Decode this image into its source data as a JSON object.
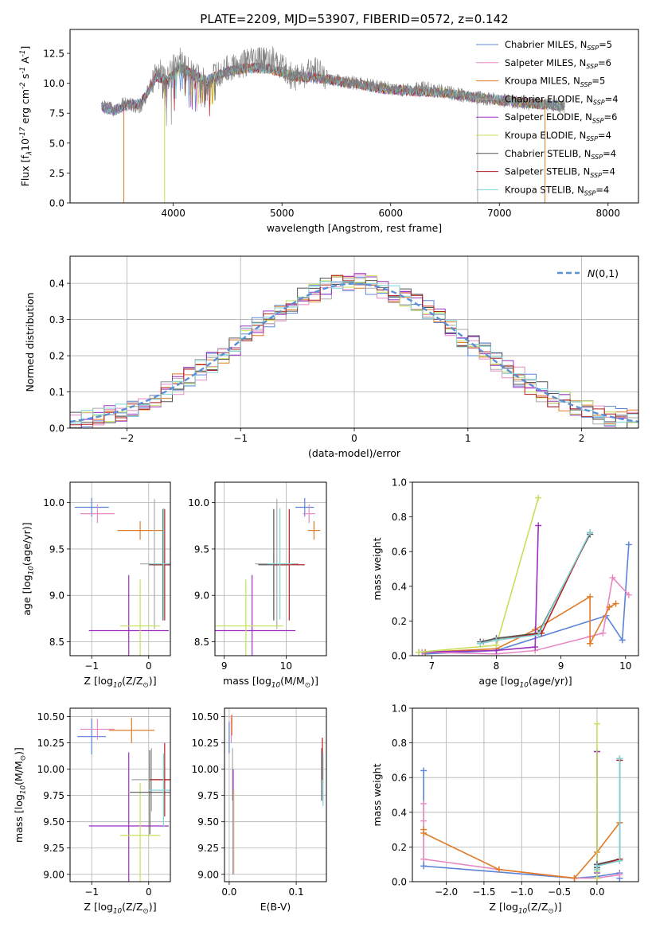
{
  "figure_title": "PLATE=2209, MJD=53907, FIBERID=0572, z=0.142",
  "models": [
    {
      "label": "Chabrier MILES, N$_{SSP}$=5",
      "color": "#5b83d8",
      "base": "Chabrier MILES, N",
      "sub": "SSP",
      "tail": "=5"
    },
    {
      "label": "Salpeter MILES, N$_{SSP}$=6",
      "color": "#e78ac3",
      "base": "Salpeter MILES, N",
      "sub": "SSP",
      "tail": "=6"
    },
    {
      "label": "Kroupa MILES, N$_{SSP}$=5",
      "color": "#e07b27",
      "base": "Kroupa MILES, N",
      "sub": "SSP",
      "tail": "=5"
    },
    {
      "label": "Chabrier ELODIE, N$_{SSP}$=4",
      "color": "#aaaaaa",
      "base": "Chabrier ELODIE, N",
      "sub": "SSP",
      "tail": "=4"
    },
    {
      "label": "Salpeter ELODIE, N$_{SSP}$=6",
      "color": "#9b30c0",
      "base": "Salpeter ELODIE, N",
      "sub": "SSP",
      "tail": "=6"
    },
    {
      "label": "Kroupa ELODIE, N$_{SSP}$=4",
      "color": "#c6e05a",
      "base": "Kroupa ELODIE, N",
      "sub": "SSP",
      "tail": "=4"
    },
    {
      "label": "Chabrier STELIB, N$_{SSP}$=4",
      "color": "#555555",
      "base": "Chabrier STELIB, N",
      "sub": "SSP",
      "tail": "=4"
    },
    {
      "label": "Salpeter STELIB, N$_{SSP}$=4",
      "color": "#b22222",
      "base": "Salpeter STELIB, N",
      "sub": "SSP",
      "tail": "=4"
    },
    {
      "label": "Kroupa STELIB, N$_{SSP}$=4",
      "color": "#7fd4d8",
      "base": "Kroupa STELIB, N",
      "sub": "SSP",
      "tail": "=4"
    }
  ],
  "chart_data": [
    {
      "id": "spectrum",
      "type": "line",
      "xlabel": "wavelength [Angstrom, rest frame]",
      "ylabel": "Flux [f$_\\lambda$10$^{-17}$ erg cm$^{-2}$ s$^{-1}$ A$^{-1}$]",
      "xlim": [
        3050,
        8280
      ],
      "ylim": [
        0,
        14.5
      ],
      "xticks": [
        4000,
        5000,
        6000,
        7000,
        8000
      ],
      "yticks": [
        0.0,
        2.5,
        5.0,
        7.5,
        10.0,
        12.5
      ],
      "series": [
        {
          "name": "data",
          "x": [
            3340,
            3450,
            3550,
            3700,
            3850,
            3950,
            4050,
            4150,
            4300,
            4500,
            4700,
            4900,
            5100,
            5300,
            5500,
            5700,
            5900,
            6100,
            6300,
            6500,
            6700,
            6900,
            7100,
            7300,
            7500,
            7600
          ],
          "y": [
            8.1,
            7.8,
            8.3,
            8.0,
            11.0,
            10.5,
            12.0,
            11.0,
            10.0,
            11.2,
            11.8,
            12.0,
            10.5,
            11.0,
            10.2,
            10.0,
            9.7,
            9.4,
            9.6,
            9.3,
            8.9,
            8.7,
            8.5,
            8.3,
            8.2,
            8.1
          ]
        },
        {
          "name": "model",
          "x": [
            3340,
            3450,
            3550,
            3700,
            3850,
            3950,
            4050,
            4150,
            4300,
            4500,
            4700,
            4900,
            5100,
            5300,
            5500,
            5700,
            5900,
            6100,
            6300,
            6500,
            6700,
            6900,
            7100,
            7300,
            7500,
            7600
          ],
          "y": [
            8.0,
            7.7,
            8.1,
            8.3,
            10.6,
            10.2,
            11.4,
            10.9,
            10.2,
            11.0,
            11.3,
            11.2,
            10.6,
            10.5,
            10.2,
            9.9,
            9.6,
            9.4,
            9.3,
            9.2,
            8.9,
            8.7,
            8.5,
            8.3,
            8.2,
            8.1
          ]
        }
      ]
    },
    {
      "id": "residuals",
      "type": "line",
      "xlabel": "(data-model)/error",
      "ylabel": "Normed distribution",
      "xlim": [
        -2.5,
        2.5
      ],
      "ylim": [
        0,
        0.475
      ],
      "xticks": [
        -2,
        -1,
        0,
        1,
        2
      ],
      "yticks": [
        0.0,
        0.1,
        0.2,
        0.3,
        0.4
      ],
      "legend": "$\\mathcal{N}(0,1)$",
      "legend_placement": "top-right",
      "gaussian": {
        "mean": 0,
        "sigma": 1
      }
    },
    {
      "id": "age-vs-metallicity",
      "type": "scatter",
      "xlabel": "Z [log$_{10}$(Z/Z$_\\odot$)]",
      "ylabel": "age  [log$_{10}$(age/yr)]",
      "xlim": [
        -1.38,
        0.38
      ],
      "ylim": [
        8.35,
        10.22
      ],
      "xticks": [
        -1,
        0
      ],
      "yticks": [
        8.5,
        9.0,
        9.5,
        10.0
      ],
      "points": [
        {
          "x": -1.0,
          "y": 9.95,
          "xerr": 0.3,
          "yerr": 0.1
        },
        {
          "x": -0.9,
          "y": 9.88,
          "xerr": 0.3,
          "yerr": 0.1
        },
        {
          "x": -0.15,
          "y": 9.7,
          "xerr": 0.4,
          "yerr": 0.1
        },
        {
          "x": 0.1,
          "y": 9.34,
          "xerr": 0.25,
          "yerr": 0.7
        },
        {
          "x": -0.35,
          "y": 8.62,
          "xerr": 0.7,
          "yerr": 0.6
        },
        {
          "x": -0.15,
          "y": 8.67,
          "xerr": 0.35,
          "yerr": 0.5
        },
        {
          "x": 0.25,
          "y": 9.33,
          "xerr": 0.25,
          "yerr": 0.6
        },
        {
          "x": 0.28,
          "y": 9.33,
          "xerr": 0.25,
          "yerr": 0.6
        },
        {
          "x": 0.26,
          "y": 9.34,
          "xerr": 0.25,
          "yerr": 0.6
        }
      ]
    },
    {
      "id": "age-vs-mass",
      "type": "scatter",
      "xlabel": "mass [log$_{10}$(M/M$_\\odot$)]",
      "ylabel": "",
      "xlim": [
        8.85,
        10.65
      ],
      "ylim": [
        8.35,
        10.22
      ],
      "xticks": [
        9,
        10
      ],
      "yticks": [
        8.5,
        9.0,
        9.5,
        10.0
      ],
      "points": [
        {
          "x": 10.3,
          "y": 9.95,
          "xerr": 0.15,
          "yerr": 0.1
        },
        {
          "x": 10.37,
          "y": 9.88,
          "xerr": 0.1,
          "yerr": 0.1
        },
        {
          "x": 10.45,
          "y": 9.7,
          "xerr": 0.1,
          "yerr": 0.1
        },
        {
          "x": 9.85,
          "y": 9.34,
          "xerr": 0.35,
          "yerr": 0.7
        },
        {
          "x": 9.45,
          "y": 8.62,
          "xerr": 0.7,
          "yerr": 0.6
        },
        {
          "x": 9.35,
          "y": 8.67,
          "xerr": 0.6,
          "yerr": 0.5
        },
        {
          "x": 9.8,
          "y": 9.33,
          "xerr": 0.25,
          "yerr": 0.6
        },
        {
          "x": 10.05,
          "y": 9.33,
          "xerr": 0.25,
          "yerr": 0.6
        },
        {
          "x": 9.9,
          "y": 9.34,
          "xerr": 0.2,
          "yerr": 0.6
        }
      ]
    },
    {
      "id": "mass-weight-vs-age",
      "type": "line",
      "xlabel": "age  [log$_{10}$(age/yr)]",
      "ylabel": "mass weight",
      "xlim": [
        6.7,
        10.2
      ],
      "ylim": [
        0,
        1
      ],
      "xticks": [
        7,
        8,
        9,
        10
      ],
      "yticks": [
        0.0,
        0.2,
        0.4,
        0.6,
        0.8,
        1.0
      ],
      "series": [
        {
          "name": "Chabrier MILES, N$_{SSP}$=5",
          "x": [
            6.9,
            8.0,
            9.7,
            9.95,
            10.05
          ],
          "y": [
            0.01,
            0.03,
            0.23,
            0.09,
            0.64
          ]
        },
        {
          "name": "Salpeter MILES, N$_{SSP}$=6",
          "x": [
            6.85,
            8.0,
            8.6,
            9.45,
            9.65,
            9.8,
            10.05
          ],
          "y": [
            0.02,
            0.01,
            0.03,
            0.11,
            0.13,
            0.45,
            0.35
          ]
        },
        {
          "name": "Kroupa MILES, N$_{SSP}$=5",
          "x": [
            6.9,
            8.0,
            8.6,
            9.45,
            9.45,
            9.75,
            9.85
          ],
          "y": [
            0.02,
            0.04,
            0.15,
            0.34,
            0.07,
            0.28,
            0.3
          ]
        },
        {
          "name": "Chabrier ELODIE, N$_{SSP}$=4",
          "x": [
            7.8,
            8.0,
            8.65,
            9.45
          ],
          "y": [
            0.08,
            0.1,
            0.13,
            0.7
          ]
        },
        {
          "name": "Salpeter ELODIE, N$_{SSP}$=6",
          "x": [
            6.8,
            8.0,
            8.6,
            8.65
          ],
          "y": [
            0.02,
            0.03,
            0.05,
            0.75
          ]
        },
        {
          "name": "Kroupa ELODIE, N$_{SSP}$=4",
          "x": [
            6.8,
            8.0,
            8.65
          ],
          "y": [
            0.02,
            0.06,
            0.91
          ]
        },
        {
          "name": "Chabrier STELIB, N$_{SSP}$=4",
          "x": [
            7.75,
            8.0,
            8.65,
            9.45
          ],
          "y": [
            0.08,
            0.1,
            0.13,
            0.7
          ]
        },
        {
          "name": "Salpeter STELIB, N$_{SSP}$=4",
          "x": [
            7.75,
            8.0,
            8.7,
            9.45
          ],
          "y": [
            0.07,
            0.09,
            0.13,
            0.71
          ]
        },
        {
          "name": "Kroupa STELIB, N$_{SSP}$=4",
          "x": [
            7.75,
            8.0,
            8.65,
            9.45
          ],
          "y": [
            0.07,
            0.09,
            0.12,
            0.71
          ]
        }
      ]
    },
    {
      "id": "mass-vs-metallicity",
      "type": "scatter",
      "xlabel": "Z [log$_{10}$(Z/Z$_\\odot$)]",
      "ylabel": "mass [log$_{10}$(M/M$_\\odot$)]",
      "xlim": [
        -1.38,
        0.38
      ],
      "ylim": [
        8.93,
        10.58
      ],
      "xticks": [
        -1,
        0
      ],
      "yticks": [
        9.0,
        9.25,
        9.5,
        9.75,
        10.0,
        10.25,
        10.5
      ],
      "points": [
        {
          "x": -1.0,
          "y": 10.31,
          "xerr": 0.25,
          "yerr": 0.17
        },
        {
          "x": -0.9,
          "y": 10.38,
          "xerr": 0.3,
          "yerr": 0.1
        },
        {
          "x": -0.3,
          "y": 10.37,
          "xerr": 0.4,
          "yerr": 0.12
        },
        {
          "x": 0.05,
          "y": 9.9,
          "xerr": 0.35,
          "yerr": 0.3
        },
        {
          "x": -0.35,
          "y": 9.46,
          "xerr": 0.7,
          "yerr": 0.7
        },
        {
          "x": -0.15,
          "y": 9.37,
          "xerr": 0.35,
          "yerr": 0.5
        },
        {
          "x": 0.02,
          "y": 9.78,
          "xerr": 0.35,
          "yerr": 0.4
        },
        {
          "x": 0.28,
          "y": 9.9,
          "xerr": 0.25,
          "yerr": 0.35
        },
        {
          "x": 0.26,
          "y": 9.8,
          "xerr": 0.25,
          "yerr": 0.35
        }
      ]
    },
    {
      "id": "mass-vs-ebv",
      "type": "scatter",
      "xlabel": "E(B-V)",
      "ylabel": "",
      "xlim": [
        -0.007,
        0.145
      ],
      "ylim": [
        8.93,
        10.58
      ],
      "xticks": [
        0.0,
        0.1
      ],
      "yticks": [
        9.0,
        9.25,
        9.5,
        9.75,
        10.0,
        10.25,
        10.5
      ],
      "points": [
        {
          "x": 0.0,
          "y": 10.3,
          "yerr": 0.15
        },
        {
          "x": 0.003,
          "y": 10.38,
          "yerr": 0.13
        },
        {
          "x": 0.004,
          "y": 10.42,
          "yerr": 0.1
        },
        {
          "x": 0.005,
          "y": 9.95,
          "yerr": 0.25
        },
        {
          "x": 0.006,
          "y": 9.5,
          "yerr": 0.5
        },
        {
          "x": 0.007,
          "y": 9.4,
          "yerr": 0.4
        },
        {
          "x": 0.138,
          "y": 9.95,
          "yerr": 0.25
        },
        {
          "x": 0.139,
          "y": 10.1,
          "yerr": 0.2
        },
        {
          "x": 0.14,
          "y": 9.9,
          "yerr": 0.25
        }
      ]
    },
    {
      "id": "mass-weight-vs-metallicity",
      "type": "line",
      "xlabel": "Z [log$_{10}$(Z/Z$_\\odot$)]",
      "ylabel": "mass weight",
      "xlim": [
        -2.45,
        0.55
      ],
      "ylim": [
        0,
        1
      ],
      "xticks": [
        -2.0,
        -1.5,
        -1.0,
        -0.5,
        0.0
      ],
      "yticks": [
        0.0,
        0.2,
        0.4,
        0.6,
        0.8,
        1.0
      ],
      "series": [
        {
          "name": "Chabrier MILES, N$_{SSP}$=5",
          "x": [
            -2.3,
            -2.3,
            -0.3,
            0.0,
            0.3,
            0.3
          ],
          "y": [
            0.64,
            0.09,
            0.02,
            0.03,
            0.05,
            0.02
          ]
        },
        {
          "name": "Salpeter MILES, N$_{SSP}$=6",
          "x": [
            -2.3,
            -2.3,
            -2.3,
            -1.3,
            -0.3,
            0.0,
            0.3
          ],
          "y": [
            0.45,
            0.35,
            0.13,
            0.07,
            0.02,
            0.02,
            0.04
          ]
        },
        {
          "name": "Kroupa MILES, N$_{SSP}$=5",
          "x": [
            -2.3,
            -2.3,
            -1.3,
            -0.3,
            0.0,
            0.3
          ],
          "y": [
            0.3,
            0.28,
            0.07,
            0.02,
            0.17,
            0.34
          ]
        },
        {
          "name": "Chabrier ELODIE, N$_{SSP}$=4",
          "x": [
            0.0,
            0.0,
            0.3,
            0.3
          ],
          "y": [
            0.75,
            0.1,
            0.12,
            0.71
          ]
        },
        {
          "name": "Salpeter ELODIE, N$_{SSP}$=6",
          "x": [
            0.0,
            0.0,
            0.0
          ],
          "y": [
            0.75,
            0.05,
            0.02
          ]
        },
        {
          "name": "Kroupa ELODIE, N$_{SSP}$=4",
          "x": [
            0.0,
            0.0,
            0.0
          ],
          "y": [
            0.91,
            0.06,
            0.02
          ]
        },
        {
          "name": "Chabrier STELIB, N$_{SSP}$=4",
          "x": [
            0.0,
            0.0,
            0.3,
            0.3
          ],
          "y": [
            0.08,
            0.1,
            0.13,
            0.7
          ]
        },
        {
          "name": "Salpeter STELIB, N$_{SSP}$=4",
          "x": [
            0.0,
            0.0,
            0.3,
            0.3
          ],
          "y": [
            0.07,
            0.09,
            0.13,
            0.7
          ]
        },
        {
          "name": "Kroupa STELIB, N$_{SSP}$=4",
          "x": [
            0.0,
            0.0,
            0.3,
            0.3
          ],
          "y": [
            0.07,
            0.09,
            0.12,
            0.71
          ]
        }
      ]
    }
  ]
}
